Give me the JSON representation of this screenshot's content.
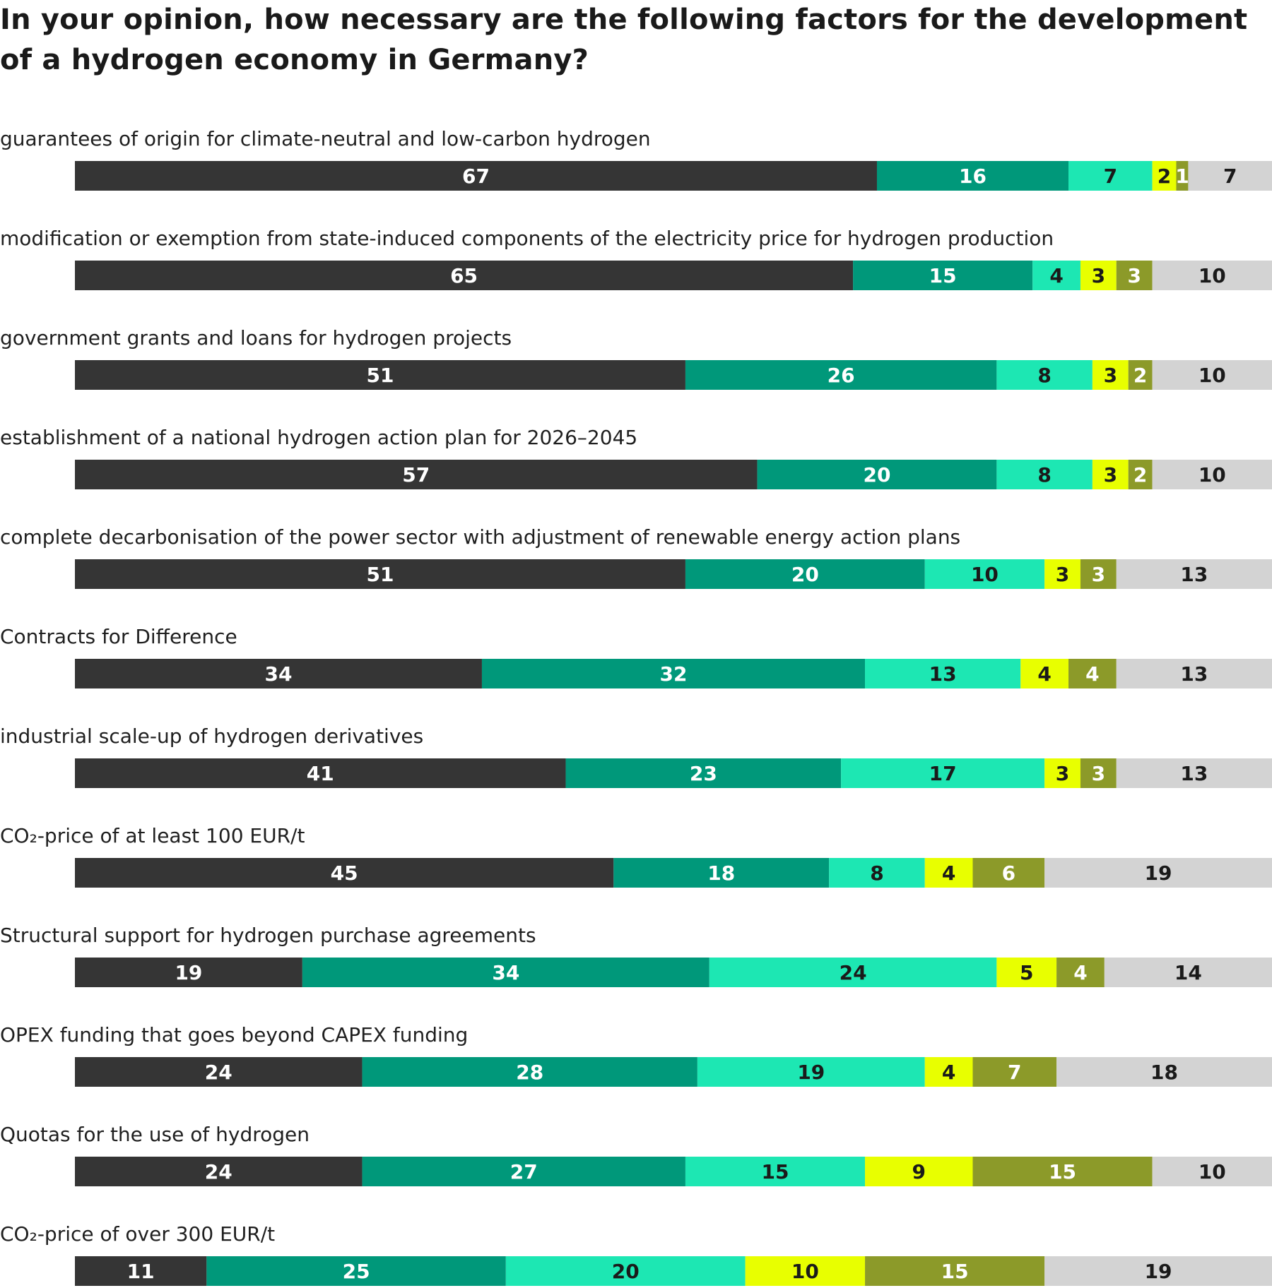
{
  "chart_data": {
    "type": "bar",
    "orientation": "horizontal",
    "stacked": true,
    "title": "In your opinion, how necessary are the following factors for the development of a hydrogen economy in Germany?",
    "xlim": [
      0,
      100
    ],
    "grid": false,
    "categories": [
      "guarantees of origin for climate-neutral and low-carbon hydrogen",
      "modification or exemption from state-induced components of the electricity price for hydrogen production",
      "government grants and loans for hydrogen projects",
      "establishment of a national hydrogen action plan for 2026–2045",
      "complete decarbonisation of the power sector with adjustment of renewable energy action plans",
      "Contracts for Difference",
      "industrial scale-up of hydrogen derivatives",
      "CO₂-price of at least 100 EUR/t",
      "Structural support for hydrogen purchase agreements",
      "OPEX funding that goes beyond CAPEX funding",
      "Quotas for the use of hydrogen",
      "CO₂-price of over 300 EUR/t"
    ],
    "series": [
      {
        "color": "#353535",
        "label_color": "#ffffff",
        "values": [
          67,
          65,
          51,
          57,
          51,
          34,
          41,
          45,
          19,
          24,
          24,
          11
        ]
      },
      {
        "color": "#00987a",
        "label_color": "#ffffff",
        "values": [
          16,
          15,
          26,
          20,
          20,
          32,
          23,
          18,
          34,
          28,
          27,
          25
        ]
      },
      {
        "color": "#1de7b3",
        "label_color": "#1a1a1a",
        "values": [
          7,
          4,
          8,
          8,
          10,
          13,
          17,
          8,
          24,
          19,
          15,
          20
        ]
      },
      {
        "color": "#e8ff00",
        "label_color": "#1a1a1a",
        "values": [
          2,
          3,
          3,
          3,
          3,
          4,
          3,
          4,
          5,
          4,
          9,
          10
        ]
      },
      {
        "color": "#8c9a29",
        "label_color": "#ffffff",
        "values": [
          1,
          3,
          2,
          2,
          3,
          4,
          3,
          6,
          4,
          7,
          15,
          15
        ]
      },
      {
        "color": "#d3d3d3",
        "label_color": "#1a1a1a",
        "values": [
          7,
          10,
          10,
          10,
          13,
          13,
          13,
          19,
          14,
          18,
          10,
          19
        ]
      }
    ]
  }
}
